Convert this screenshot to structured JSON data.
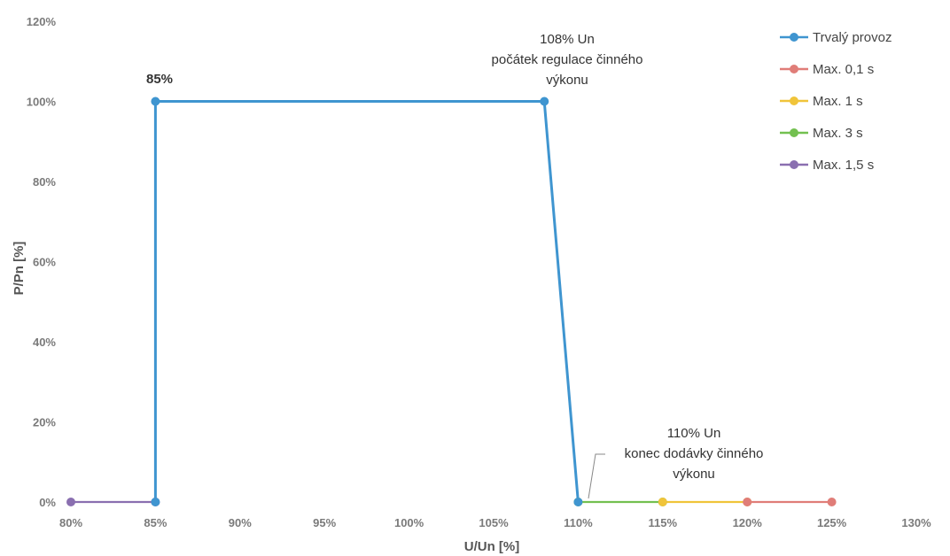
{
  "chart_data": {
    "type": "line",
    "xlabel": "U/Un [%]",
    "ylabel": "P/Pn [%]",
    "xlim": [
      80,
      130
    ],
    "ylim": [
      0,
      120
    ],
    "x_ticks": [
      "80%",
      "85%",
      "90%",
      "95%",
      "100%",
      "105%",
      "110%",
      "115%",
      "120%",
      "125%",
      "130%"
    ],
    "y_ticks": [
      "0%",
      "20%",
      "40%",
      "60%",
      "80%",
      "100%",
      "120%"
    ],
    "legend_position": "top-right",
    "grid": false,
    "series": [
      {
        "name": "Trvalý provoz",
        "color": "#3f95d0",
        "x": [
          85,
          85,
          108,
          110
        ],
        "y": [
          0,
          100,
          100,
          0
        ]
      },
      {
        "name": "Max. 0,1 s",
        "color": "#e07d78",
        "x": [
          120,
          125
        ],
        "y": [
          0,
          0
        ]
      },
      {
        "name": "Max. 1 s",
        "color": "#f0c43a",
        "x": [
          115,
          120
        ],
        "y": [
          0,
          0
        ]
      },
      {
        "name": "Max. 3 s",
        "color": "#73c050",
        "x": [
          110,
          115
        ],
        "y": [
          0,
          0
        ]
      },
      {
        "name": "Max. 1,5 s",
        "color": "#8a6fb0",
        "x": [
          80,
          85
        ],
        "y": [
          0,
          0
        ]
      }
    ],
    "annotations": [
      {
        "id": "ann85",
        "lines": [
          "85%"
        ]
      },
      {
        "id": "ann108",
        "lines": [
          "108% Un",
          "počátek regulace činného",
          "výkonu"
        ]
      },
      {
        "id": "ann110",
        "lines": [
          "110% Un",
          "konec dodávky činného",
          "výkonu"
        ]
      }
    ]
  }
}
